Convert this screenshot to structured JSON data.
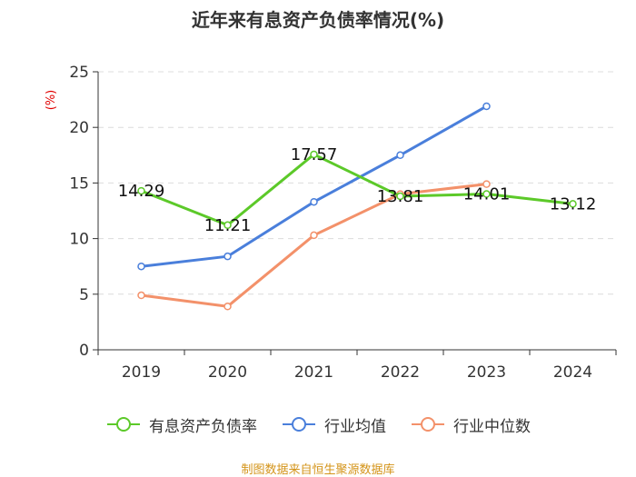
{
  "page": {
    "title": "近年来有息资产负债率情况(%)",
    "source_note": "制图数据来自恒生聚源数据库"
  },
  "chart_data": {
    "type": "line",
    "title": "近年来有息资产负债率情况(%)",
    "ylabel": "(%)",
    "xlabel": "",
    "categories": [
      "2019",
      "2020",
      "2021",
      "2022",
      "2023",
      "2024"
    ],
    "ylim": [
      0,
      25
    ],
    "yticks": [
      0,
      5,
      10,
      15,
      20,
      25
    ],
    "grid": "horizontal dashed",
    "legend_position": "bottom",
    "series": [
      {
        "name": "有息资产负债率",
        "color": "#5cc929",
        "values": [
          14.29,
          11.21,
          17.57,
          13.81,
          14.01,
          13.12
        ],
        "data_labels": [
          "14.29",
          "11.21",
          "17.57",
          "13.81",
          "14.01",
          "13.12"
        ]
      },
      {
        "name": "行业均值",
        "color": "#4a7fdb",
        "values": [
          7.5,
          8.4,
          13.3,
          17.5,
          21.9,
          null
        ]
      },
      {
        "name": "行业中位数",
        "color": "#f3916a",
        "values": [
          4.9,
          3.9,
          10.3,
          14.0,
          14.9,
          null
        ]
      }
    ]
  }
}
